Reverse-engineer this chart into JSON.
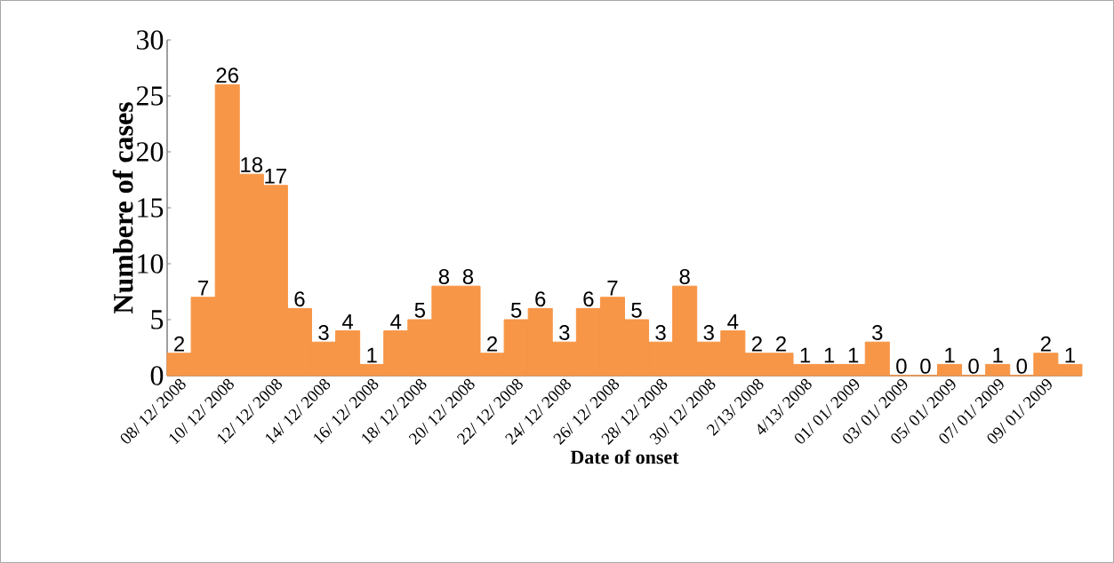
{
  "chart_data": {
    "type": "bar",
    "xlabel": "Date of onset",
    "ylabel": "Numbere of cases",
    "categories": [
      "08/ 12/ 2008",
      null,
      "10/ 12/ 2008",
      null,
      "12/ 12/ 2008",
      null,
      "14/ 12/ 2008",
      null,
      "16/ 12/ 2008",
      null,
      "18/ 12/ 2008",
      null,
      "20/ 12/ 2008",
      null,
      "22/ 12/ 2008",
      null,
      "24/ 12/ 2008",
      null,
      "26/ 12/ 2008",
      null,
      "28/ 12/ 2008",
      null,
      "30/ 12/ 2008",
      null,
      "2/13/ 2008",
      null,
      "4/13/ 2008",
      null,
      "01/ 01/ 2009",
      null,
      "03/ 01/ 2009",
      null,
      "05/ 01/ 2009",
      null,
      "07/ 01/ 2009",
      null,
      "09/ 01/ 2009",
      null
    ],
    "values": [
      2,
      7,
      26,
      18,
      17,
      6,
      3,
      4,
      1,
      4,
      5,
      8,
      8,
      2,
      5,
      6,
      3,
      6,
      7,
      5,
      3,
      8,
      3,
      4,
      2,
      2,
      1,
      1,
      1,
      3,
      0,
      0,
      1,
      0,
      1,
      0,
      2,
      1
    ],
    "color": "#f79646",
    "ylim": [
      0,
      30
    ],
    "yticks": [
      0,
      5,
      10,
      15,
      20,
      25,
      30
    ],
    "data_labels": true,
    "grid": false,
    "legend": false
  }
}
